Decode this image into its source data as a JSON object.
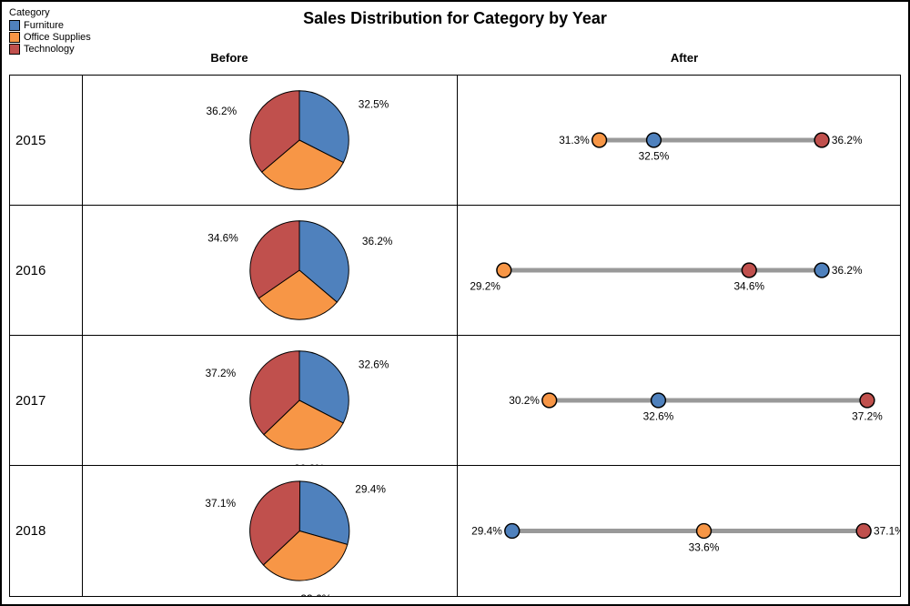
{
  "title": "Sales Distribution for Category by Year",
  "legend": {
    "title": "Category",
    "items": [
      {
        "label": "Furniture",
        "color": "#4f81bd"
      },
      {
        "label": "Office Supplies",
        "color": "#f79646"
      },
      {
        "label": "Technology",
        "color": "#c0504d"
      }
    ]
  },
  "columns": {
    "before": "Before",
    "after": "After"
  },
  "categories": {
    "furniture": {
      "color": "#4f81bd",
      "border": "#000000"
    },
    "office_supplies": {
      "color": "#f79646",
      "border": "#000000"
    },
    "technology": {
      "color": "#c0504d",
      "border": "#000000"
    }
  },
  "pie_style": {
    "radius": 55,
    "stroke": "#000000",
    "stroke_width": 1,
    "label_fontsize": 12,
    "label_color": "#000000"
  },
  "dot_style": {
    "line_color": "#999999",
    "line_width": 5,
    "dot_radius": 8,
    "dot_stroke": "#000000",
    "dot_stroke_width": 1.5,
    "label_fontsize": 12,
    "label_color": "#000000",
    "scale_min": 29.0,
    "scale_max": 37.4
  },
  "rows": [
    {
      "year": "2015",
      "values": {
        "furniture": 32.5,
        "office_supplies": 31.3,
        "technology": 36.2
      },
      "dot_labels": {
        "furniture": "below",
        "office_supplies": "left",
        "technology": "right"
      }
    },
    {
      "year": "2016",
      "values": {
        "furniture": 36.2,
        "office_supplies": 29.2,
        "technology": 34.6
      },
      "dot_labels": {
        "furniture": "right",
        "office_supplies": "belowleft",
        "technology": "below"
      }
    },
    {
      "year": "2017",
      "values": {
        "furniture": 32.6,
        "office_supplies": 30.2,
        "technology": 37.2
      },
      "dot_labels": {
        "furniture": "below",
        "office_supplies": "left",
        "technology": "below"
      }
    },
    {
      "year": "2018",
      "values": {
        "furniture": 29.4,
        "office_supplies": 33.6,
        "technology": 37.1
      },
      "dot_labels": {
        "furniture": "left",
        "office_supplies": "below",
        "technology": "right"
      }
    }
  ],
  "layout": {
    "background": "#ffffff",
    "border_color": "#000000",
    "title_fontsize": 18,
    "year_fontsize": 15,
    "header_fontsize": 13
  }
}
